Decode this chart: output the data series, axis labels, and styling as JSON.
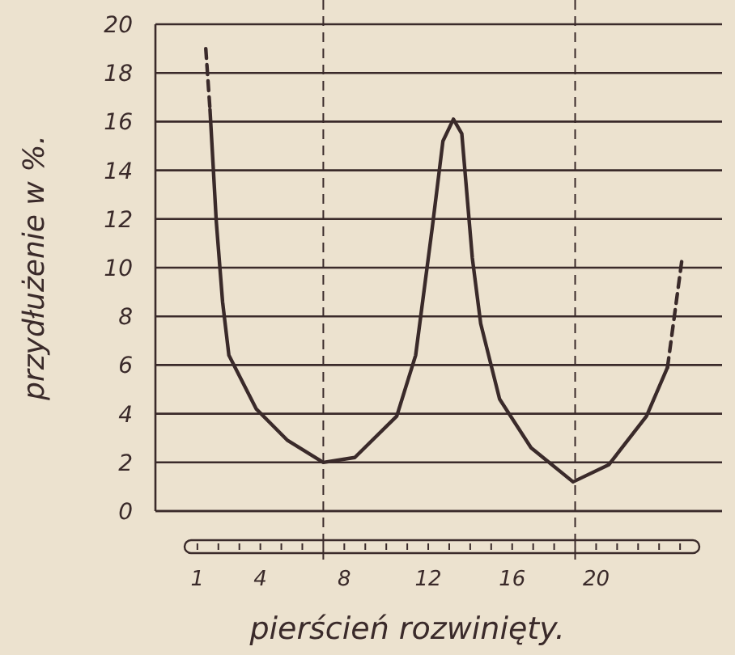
{
  "chart_data": {
    "type": "line",
    "xlabel": "pierścień rozwinięty.",
    "ylabel": "przydłużenie w %.",
    "xlim": [
      -1,
      26
    ],
    "xticks": [
      1,
      4,
      8,
      12,
      16,
      20
    ],
    "ylim": [
      0,
      20
    ],
    "yticks": [
      0,
      2,
      4,
      6,
      8,
      10,
      12,
      14,
      16,
      18,
      20
    ],
    "grid": "y",
    "marker": "none",
    "ref_lines": [
      {
        "axis": "x",
        "value": 7,
        "line_style": "dashed"
      },
      {
        "axis": "x",
        "value": 19,
        "line_style": "dashed"
      }
    ],
    "series": [
      {
        "color": "#3a2a2a",
        "line_style": "dashed",
        "x": [
          1.4,
          1.6
        ],
        "values": [
          19.0,
          16.5
        ]
      },
      {
        "color": "#3a2a2a",
        "line_style": "solid",
        "x": [
          1.6,
          1.9,
          2.2,
          2.5,
          3.8,
          5.3,
          7.0,
          8.5,
          10.5,
          11.4,
          12.2,
          12.7,
          13.2,
          13.6,
          14.1,
          14.5,
          15.4,
          16.9,
          18.9,
          20.6,
          22.4,
          23.4
        ],
        "values": [
          16.5,
          11.9,
          8.6,
          6.4,
          4.2,
          2.9,
          2.0,
          2.2,
          3.9,
          6.4,
          11.7,
          15.2,
          16.1,
          15.5,
          10.4,
          7.7,
          4.6,
          2.6,
          1.2,
          1.9,
          3.9,
          5.9
        ]
      },
      {
        "color": "#3a2a2a",
        "line_style": "dashed",
        "x": [
          23.4,
          24.1
        ],
        "values": [
          5.9,
          10.4
        ]
      }
    ]
  }
}
